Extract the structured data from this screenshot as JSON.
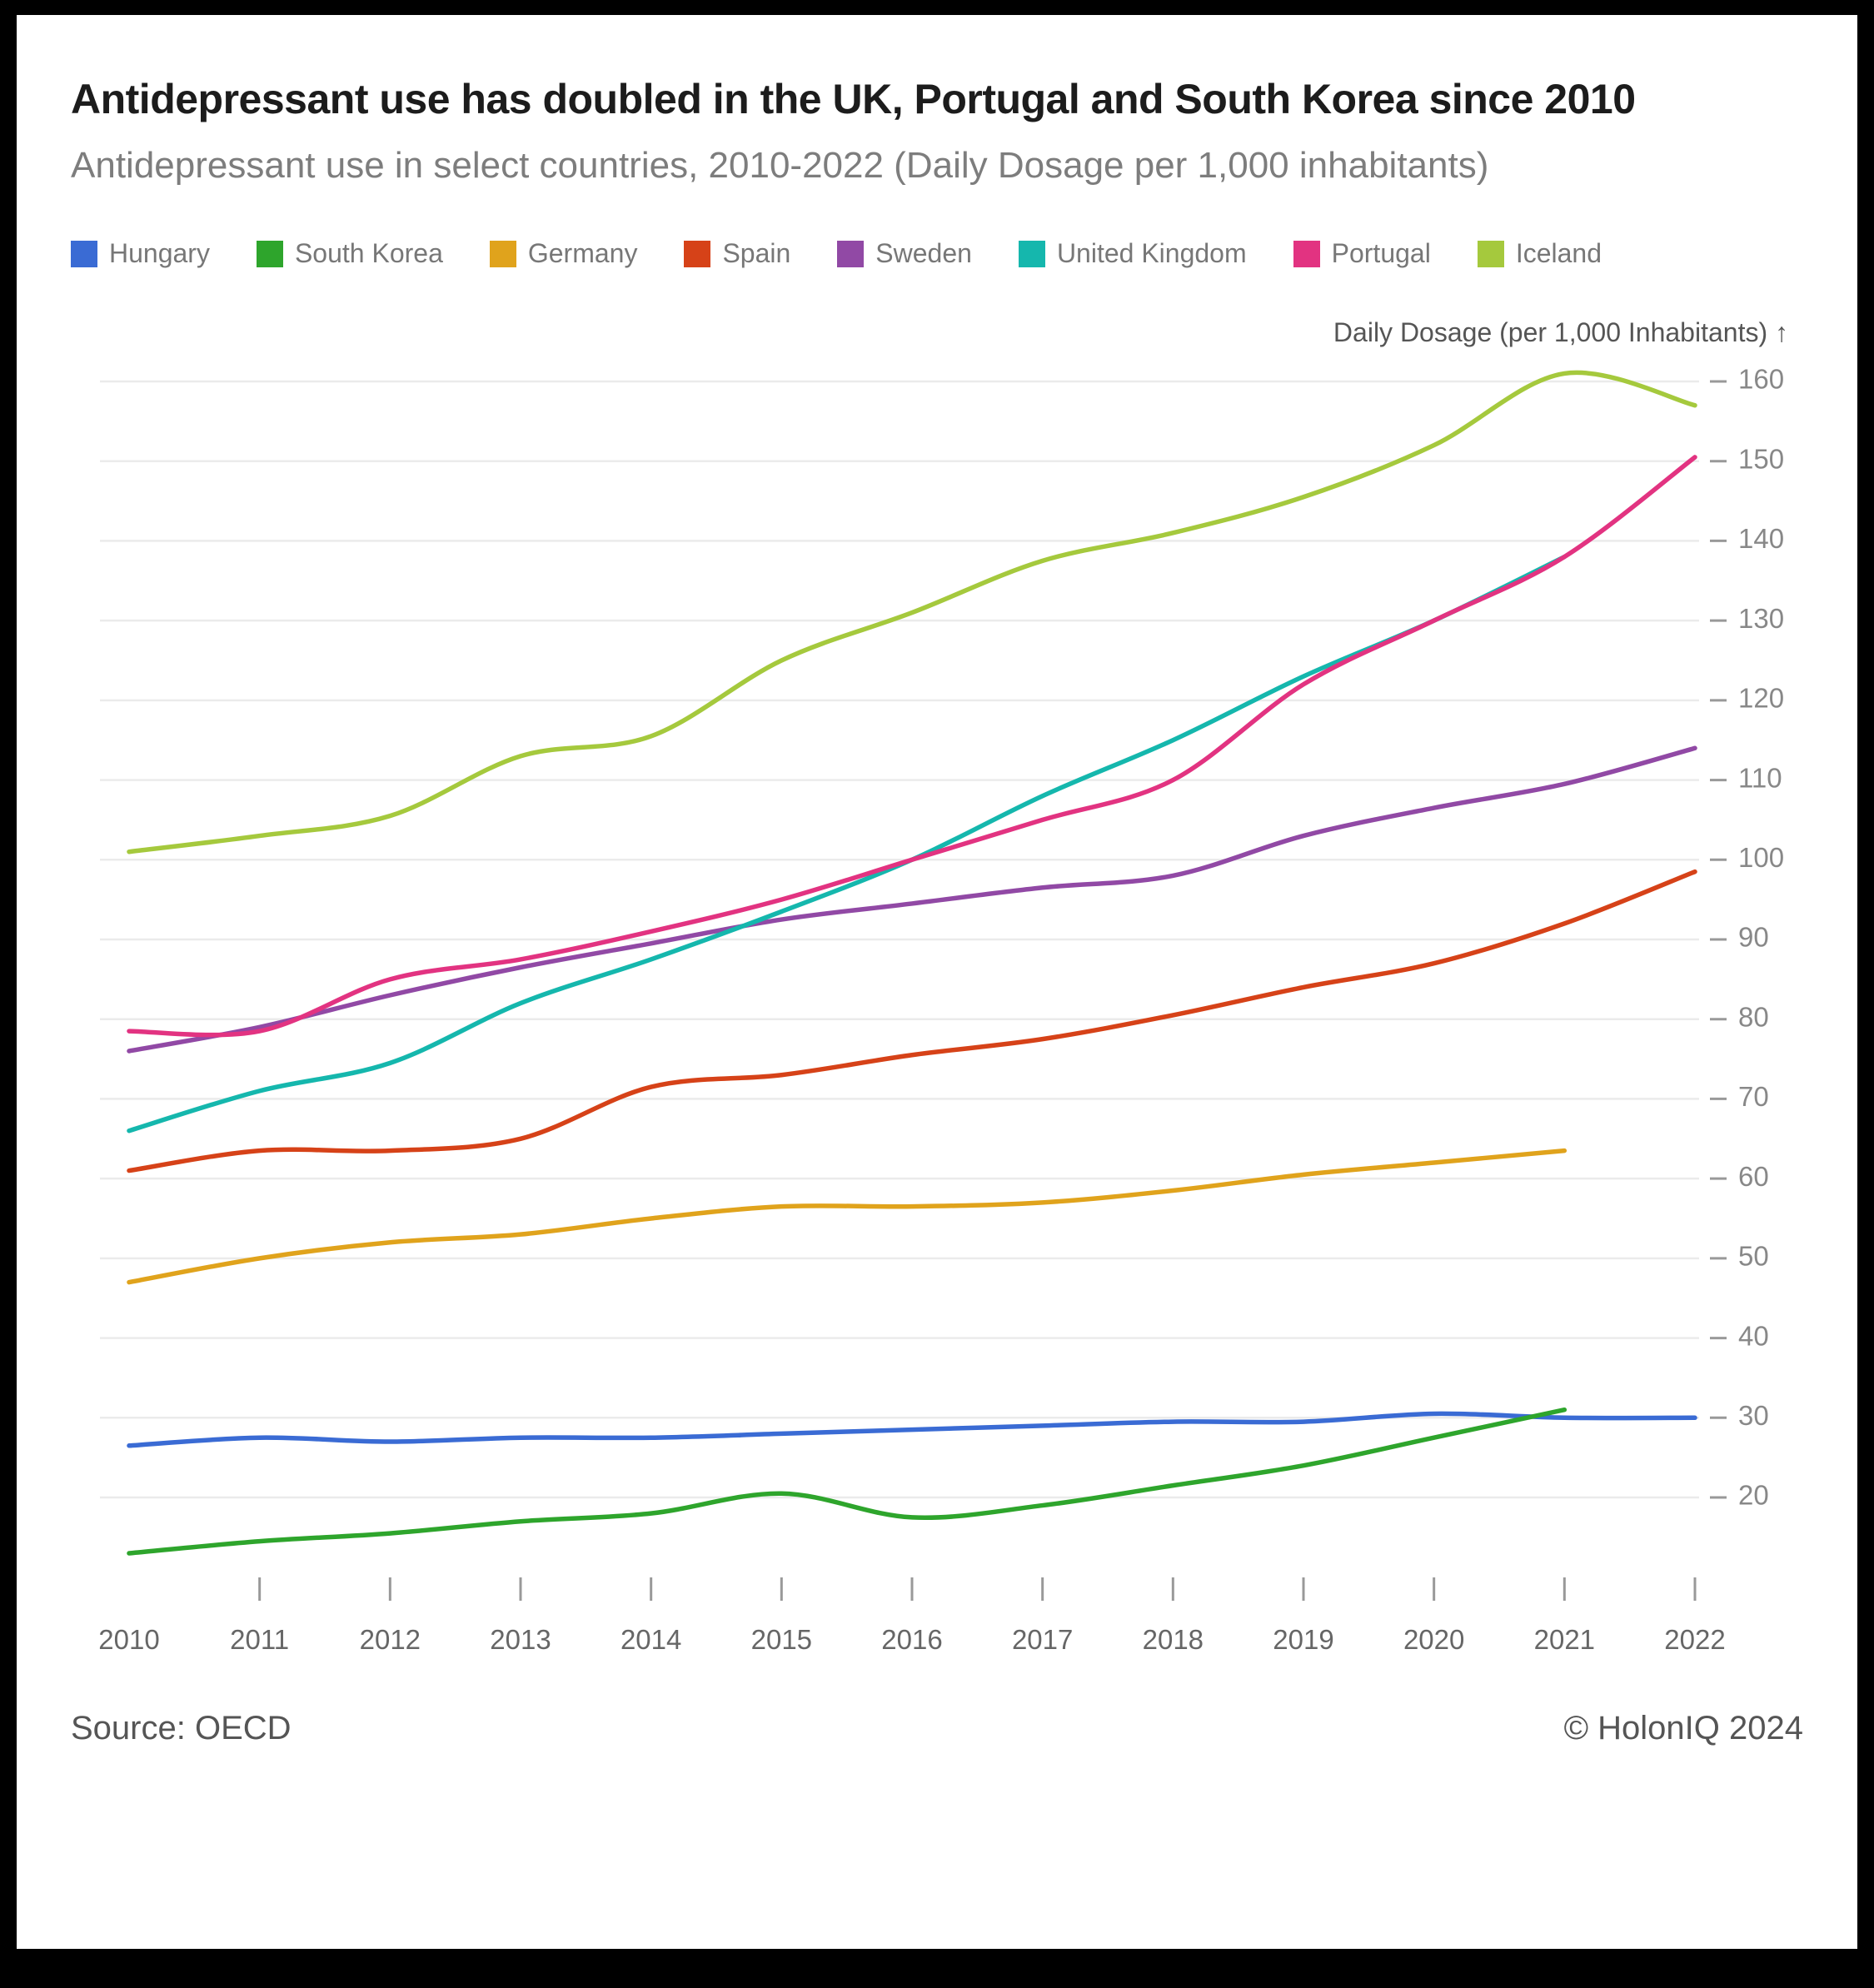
{
  "header": {
    "title": "Antidepressant use has doubled in the UK, Portugal and South Korea since 2010",
    "subtitle": "Antidepressant use in select countries, 2010-2022 (Daily Dosage per 1,000 inhabitants)"
  },
  "axis": {
    "y_title": "Daily Dosage (per 1,000 Inhabitants) ↑"
  },
  "footer": {
    "source": "Source: OECD",
    "credit": "© HolonIQ 2024"
  },
  "chart_data": {
    "type": "line",
    "title": "Antidepressant use has doubled in the UK, Portugal and South Korea since 2010",
    "subtitle": "Antidepressant use in select countries, 2010-2022 (Daily Dosage per 1,000 inhabitants)",
    "ylabel": "Daily Dosage (per 1,000 Inhabitants)",
    "xlabel": "",
    "x": [
      2010,
      2011,
      2012,
      2013,
      2014,
      2015,
      2016,
      2017,
      2018,
      2019,
      2020,
      2021,
      2022
    ],
    "ylim": [
      20,
      160
    ],
    "yticks": [
      20,
      30,
      40,
      50,
      60,
      70,
      80,
      90,
      100,
      110,
      120,
      130,
      140,
      150,
      160
    ],
    "grid": true,
    "legend_position": "top",
    "series": [
      {
        "name": "Hungary",
        "color": "#3a6bd4",
        "values": [
          26.5,
          27.5,
          27,
          27.5,
          27.5,
          28,
          28.5,
          29,
          29.5,
          29.5,
          30.5,
          30,
          30
        ]
      },
      {
        "name": "South Korea",
        "color": "#2ea52c",
        "values": [
          13,
          14.5,
          15.5,
          17,
          18,
          20.5,
          17.5,
          19,
          21.5,
          24,
          27.5,
          31,
          null
        ]
      },
      {
        "name": "Germany",
        "color": "#e0a31c",
        "values": [
          47,
          50,
          52,
          53,
          55,
          56.5,
          56.5,
          57,
          58.5,
          60.5,
          62,
          63.5,
          null
        ]
      },
      {
        "name": "Spain",
        "color": "#d64218",
        "values": [
          61,
          63.5,
          63.5,
          65,
          71.5,
          73,
          75.5,
          77.5,
          80.5,
          84,
          87,
          92,
          98.5
        ]
      },
      {
        "name": "Sweden",
        "color": "#9149a5",
        "values": [
          76,
          79,
          83,
          86.5,
          89.5,
          92.5,
          94.5,
          96.5,
          98,
          103,
          106.5,
          109.5,
          114
        ]
      },
      {
        "name": "United Kingdom",
        "color": "#15b7ad",
        "values": [
          66,
          71,
          74.5,
          82,
          87.5,
          93.5,
          100,
          108,
          115,
          123,
          130,
          138,
          null
        ]
      },
      {
        "name": "Portugal",
        "color": "#e23381",
        "values": [
          78.5,
          78.5,
          85,
          87.5,
          91,
          95,
          100,
          105,
          110,
          122,
          130,
          138,
          150.5
        ]
      },
      {
        "name": "Iceland",
        "color": "#a5c93d",
        "values": [
          101,
          103,
          105.5,
          113,
          115.5,
          125,
          131,
          137.5,
          141,
          145.5,
          152,
          161,
          157
        ]
      }
    ]
  }
}
